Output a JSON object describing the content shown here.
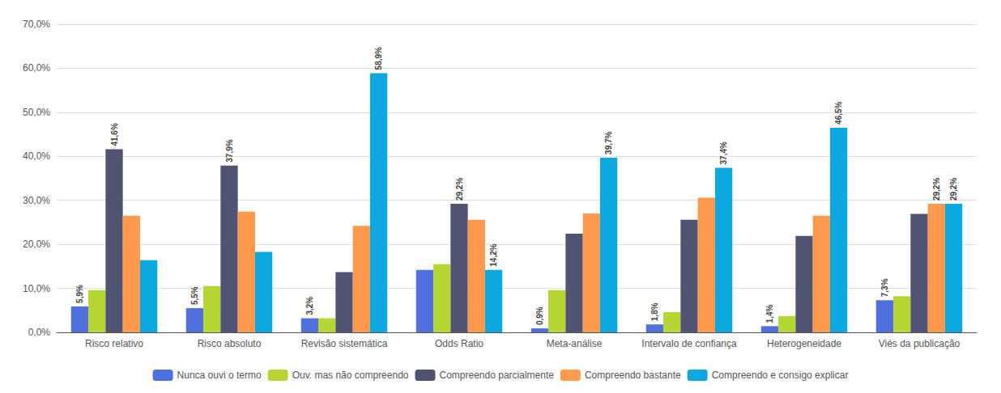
{
  "chart_data": {
    "type": "bar",
    "categories": [
      "Risco relativo",
      "Risco absoluto",
      "Revisão sistemática",
      "Odds Ratio",
      "Meta-análise",
      "Intervalo de confiança",
      "Heterogeneidade",
      "Viés da publicação"
    ],
    "series": [
      {
        "name": "Nunca ouvi o termo",
        "values": [
          5.9,
          5.5,
          3.2,
          14.2,
          0.9,
          1.8,
          1.4,
          7.3
        ],
        "value_labels": [
          "5,9%",
          "5,5%",
          "3,2%",
          null,
          "0,9%",
          "1,8%",
          "1,4%",
          "7,3%"
        ]
      },
      {
        "name": "Ouv. mas não compreendo",
        "values": [
          9.6,
          10.5,
          3.2,
          15.5,
          9.6,
          4.6,
          3.7,
          8.2
        ],
        "value_labels": [
          null,
          null,
          null,
          null,
          null,
          null,
          null,
          null
        ]
      },
      {
        "name": "Compreendo parcialmente",
        "values": [
          41.6,
          37.9,
          13.7,
          29.2,
          22.4,
          25.6,
          21.9,
          26.9
        ],
        "value_labels": [
          "41,6%",
          "37,9%",
          null,
          "29,2%",
          null,
          null,
          null,
          null
        ]
      },
      {
        "name": "Compreendo bastante",
        "values": [
          26.5,
          27.4,
          24.2,
          25.6,
          27.0,
          30.6,
          26.5,
          29.2
        ],
        "value_labels": [
          null,
          null,
          null,
          null,
          null,
          null,
          null,
          "29,2%"
        ]
      },
      {
        "name": "Compreendo e consigo explicar",
        "values": [
          16.4,
          18.3,
          58.9,
          14.2,
          39.7,
          37.4,
          46.5,
          29.2
        ],
        "value_labels": [
          null,
          null,
          "58,9%",
          "14,2%",
          "39,7%",
          "37,4%",
          "46,5%",
          "29,2%"
        ]
      }
    ],
    "ylim": [
      0,
      70
    ],
    "yticks": [
      {
        "value": 0,
        "label": "0,0%"
      },
      {
        "value": 10,
        "label": "10,0%"
      },
      {
        "value": 20,
        "label": "20,0%"
      },
      {
        "value": 30,
        "label": "30,0%"
      },
      {
        "value": 40,
        "label": "40,0%"
      },
      {
        "value": 50,
        "label": "50,0%"
      },
      {
        "value": 60,
        "label": "60,0%"
      },
      {
        "value": 70,
        "label": "70,0%"
      }
    ],
    "grid": true,
    "legend": "bottom",
    "data_labels": true
  }
}
